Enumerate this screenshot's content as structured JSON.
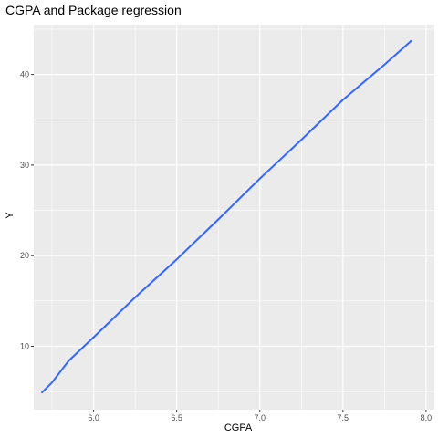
{
  "chart_data": {
    "type": "line",
    "title": "CGPA and Package regression",
    "xlabel": "CGPA",
    "ylabel": "Y",
    "xlim": [
      5.64,
      8.05
    ],
    "ylim": [
      3.0,
      45.5
    ],
    "xticks": [
      "6.0",
      "6.5",
      "7.0",
      "7.5",
      "8.0"
    ],
    "yticks": [
      "10",
      "20",
      "30",
      "40"
    ],
    "grid": true,
    "colors": {
      "panel": "#ebebeb",
      "grid": "#ffffff",
      "line": "#3366ff"
    },
    "series": [
      {
        "x": [
          5.69,
          5.75,
          5.85,
          6.0,
          6.25,
          6.5,
          6.75,
          7.0,
          7.25,
          7.5,
          7.75,
          7.91
        ],
        "values": [
          4.9,
          6.0,
          8.4,
          11.0,
          15.4,
          19.6,
          24.0,
          28.5,
          32.8,
          37.2,
          41.1,
          43.7
        ]
      }
    ]
  }
}
